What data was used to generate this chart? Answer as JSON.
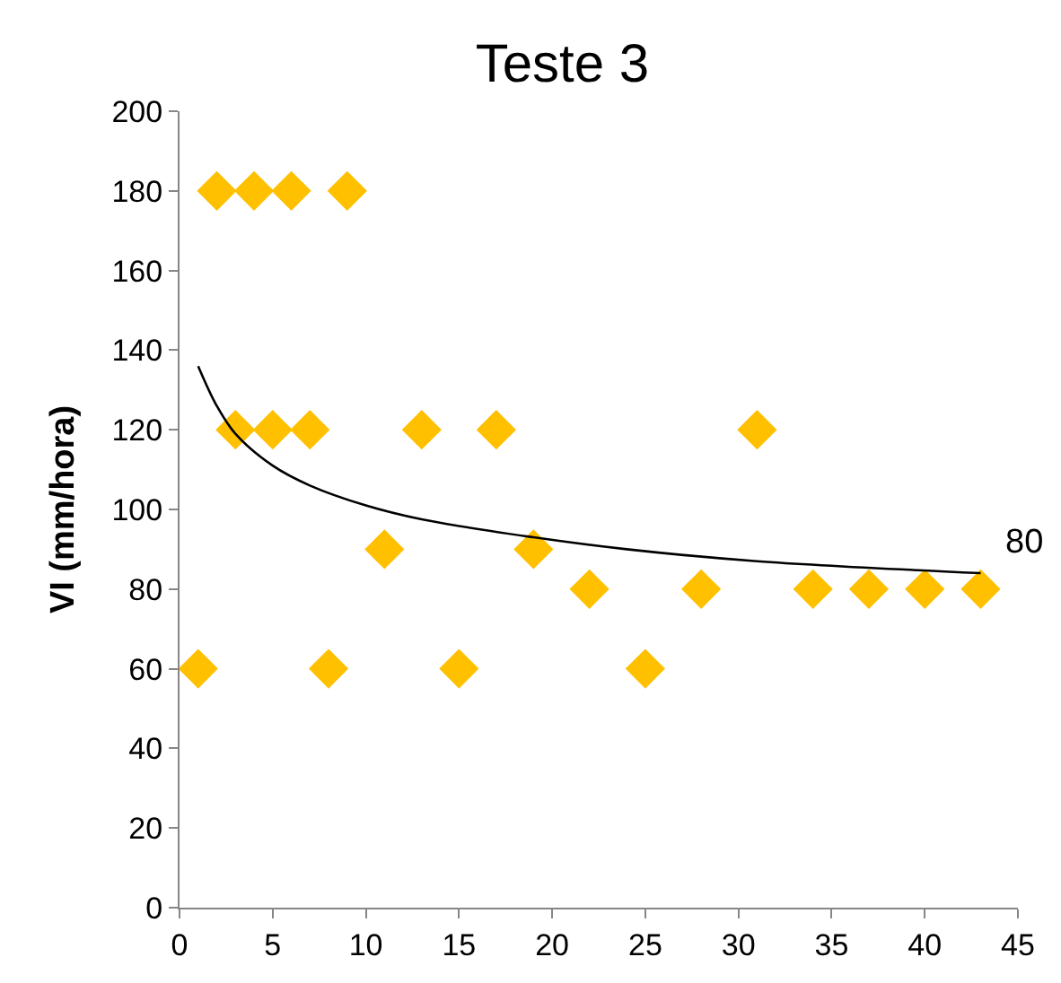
{
  "chart_data": {
    "type": "scatter",
    "title": "Teste 3",
    "ylabel": "VI (mm/hora)",
    "marker": "diamond",
    "xlim": [
      0,
      45
    ],
    "xticks": [
      0,
      5,
      10,
      15,
      20,
      25,
      30,
      35,
      40,
      45
    ],
    "ylim": [
      0,
      200
    ],
    "yticks": [
      0,
      20,
      40,
      60,
      80,
      100,
      120,
      140,
      160,
      180,
      200
    ],
    "series": [
      {
        "color": "#ffc000",
        "x": [
          1,
          2,
          3,
          4,
          5,
          6,
          7,
          8,
          9,
          11,
          13,
          15,
          17,
          19,
          22,
          25,
          28,
          31,
          34,
          37,
          40,
          43
        ],
        "values": [
          60,
          180,
          120,
          180,
          120,
          180,
          120,
          60,
          180,
          90,
          120,
          60,
          120,
          90,
          80,
          60,
          80,
          120,
          80,
          80,
          80,
          80
        ]
      },
      {
        "type": "line",
        "color": "#000000",
        "marker": "none",
        "x": [
          1,
          2,
          3,
          5,
          7,
          10,
          13,
          19,
          24,
          31,
          43
        ],
        "values": [
          136,
          126,
          119,
          111,
          106,
          101,
          97.5,
          93,
          90,
          87,
          84
        ]
      }
    ],
    "annotations": [
      {
        "text": "80",
        "x": 43,
        "y": 80
      }
    ]
  }
}
